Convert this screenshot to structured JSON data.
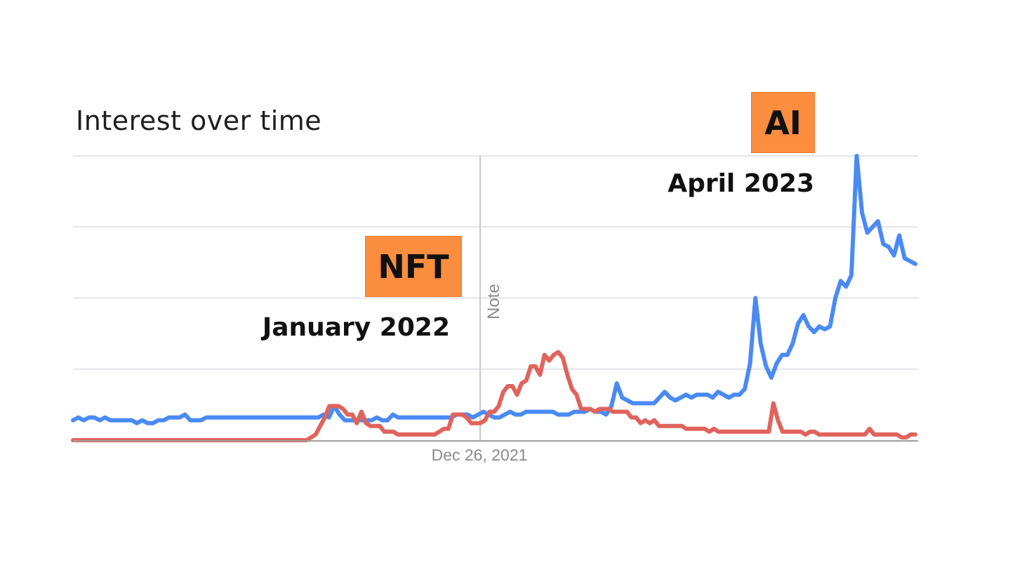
{
  "chart_data": {
    "type": "line",
    "title": "Interest over time",
    "x_tick_labels": [
      "Dec 26, 2021"
    ],
    "note_label": "Note",
    "ylim": [
      0,
      100
    ],
    "grid": true,
    "series": [
      {
        "color": "#4a8af4",
        "values": [
          7,
          8,
          7,
          8,
          8,
          7,
          8,
          7,
          7,
          7,
          7,
          7,
          6,
          7,
          6,
          6,
          7,
          7,
          8,
          8,
          8,
          9,
          7,
          7,
          7,
          8,
          8,
          8,
          8,
          8,
          8,
          8,
          8,
          8,
          8,
          8,
          8,
          8,
          8,
          8,
          8,
          8,
          8,
          8,
          8,
          8,
          8,
          9,
          8,
          12,
          9,
          7,
          7,
          7,
          7,
          7,
          7,
          8,
          7,
          7,
          9,
          8,
          8,
          8,
          8,
          8,
          8,
          8,
          8,
          8,
          8,
          8,
          9,
          9,
          9,
          8,
          9,
          10,
          9,
          8,
          8,
          9,
          10,
          9,
          9,
          10,
          10,
          10,
          10,
          10,
          10,
          9,
          9,
          9,
          10,
          10,
          10,
          11,
          10,
          10,
          9,
          12,
          20,
          15,
          14,
          13,
          13,
          13,
          13,
          13,
          15,
          17,
          15,
          14,
          15,
          16,
          15,
          16,
          16,
          16,
          15,
          17,
          16,
          15,
          16,
          16,
          18,
          27,
          50,
          34,
          26,
          22,
          27,
          30,
          30,
          34,
          41,
          44,
          40,
          38,
          40,
          39,
          40,
          50,
          56,
          54,
          58,
          100,
          80,
          73,
          75,
          77,
          69,
          68,
          65,
          72,
          64,
          63,
          62
        ]
      },
      {
        "color": "#e0635c",
        "values": [
          0,
          0,
          0,
          0,
          0,
          0,
          0,
          0,
          0,
          0,
          0,
          0,
          0,
          0,
          0,
          0,
          0,
          0,
          0,
          0,
          0,
          0,
          0,
          0,
          0,
          0,
          0,
          0,
          0,
          0,
          0,
          0,
          0,
          0,
          0,
          0,
          0,
          0,
          0,
          0,
          0,
          0,
          0,
          0,
          0,
          0,
          0,
          0,
          0,
          0,
          0,
          0,
          1,
          2,
          5,
          8,
          12,
          12,
          12,
          11,
          9,
          9,
          6,
          10,
          6,
          5,
          5,
          5,
          3,
          3,
          3,
          2,
          2,
          2,
          2,
          2,
          2,
          2,
          2,
          2,
          3,
          4,
          4,
          9,
          9,
          9,
          8,
          6,
          6,
          6,
          7,
          10,
          10,
          12,
          17,
          19,
          19,
          16,
          20,
          21,
          26,
          26,
          23,
          30,
          28,
          30,
          31,
          29,
          23,
          18,
          16,
          11,
          11,
          11,
          10,
          11,
          11,
          11,
          10,
          10,
          10,
          10,
          8,
          8,
          6,
          7,
          6,
          7,
          5,
          5,
          5,
          5,
          5,
          5,
          4,
          4,
          4,
          4,
          4,
          3,
          4,
          3,
          3,
          3,
          3,
          3,
          3,
          3,
          3,
          3,
          3,
          3,
          3,
          13,
          7,
          3,
          3,
          3,
          3,
          3,
          2,
          3,
          3,
          2,
          2,
          2,
          2,
          2,
          2,
          2,
          2,
          2,
          2,
          2,
          4,
          2,
          2,
          2,
          2,
          2,
          2,
          1,
          1,
          2,
          2
        ]
      }
    ]
  },
  "annotations": {
    "nft_tag": "NFT",
    "nft_date": "January 2022",
    "ai_tag": "AI",
    "ai_date": "April 2023"
  }
}
